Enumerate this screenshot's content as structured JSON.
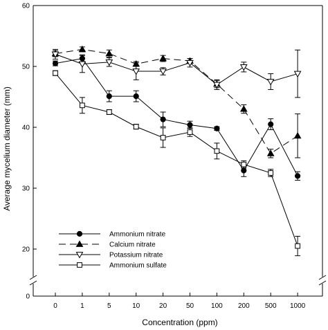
{
  "chart_data": {
    "type": "line",
    "xlabel": "Concentration (ppm)",
    "ylabel": "Average mycelium diameter (mm)",
    "categories": [
      "0",
      "1",
      "5",
      "10",
      "20",
      "50",
      "100",
      "200",
      "500",
      "1000"
    ],
    "y_ticks": [
      "0",
      "20",
      "30",
      "40",
      "50",
      "60"
    ],
    "ylim": [
      0,
      60
    ],
    "y_axis_break": [
      0,
      20
    ],
    "grid": false,
    "legend_position": "bottom-left",
    "series": [
      {
        "name": "Ammonium nitrate",
        "marker": "filled-circle",
        "line": "solid",
        "values": [
          50.5,
          51.3,
          45.1,
          45.1,
          41.3,
          40.4,
          39.8,
          32.9,
          40.5,
          32.0
        ],
        "errors": [
          0.4,
          0.6,
          0.9,
          0.9,
          1.2,
          0.6,
          0.3,
          1.0,
          0.9,
          0.7
        ]
      },
      {
        "name": "Calcium nitrate",
        "marker": "filled-triangle-up",
        "line": "dashed",
        "values": [
          52.1,
          52.8,
          52.1,
          50.4,
          51.3,
          50.9,
          47.1,
          43.0,
          35.7,
          38.6
        ],
        "errors": [
          0.5,
          0.4,
          0.6,
          0.4,
          0.5,
          0.4,
          0.6,
          0.7,
          0.7,
          3.6
        ]
      },
      {
        "name": "Potassium nitrate",
        "marker": "open-triangle-down",
        "line": "solid",
        "values": [
          52.0,
          50.4,
          50.7,
          49.2,
          49.2,
          50.6,
          47.0,
          49.9,
          47.5,
          48.8
        ],
        "errors": [
          0.8,
          1.4,
          0.7,
          1.4,
          0.6,
          0.7,
          0.8,
          0.8,
          1.3,
          3.9
        ]
      },
      {
        "name": "Ammonium sulfate",
        "marker": "open-square",
        "line": "solid",
        "values": [
          48.9,
          43.6,
          42.5,
          40.1,
          38.3,
          39.2,
          36.1,
          33.9,
          32.5,
          20.5
        ],
        "errors": [
          0.4,
          1.3,
          0.4,
          0.4,
          1.6,
          0.7,
          1.3,
          0.6,
          0.6,
          1.6
        ]
      }
    ]
  }
}
